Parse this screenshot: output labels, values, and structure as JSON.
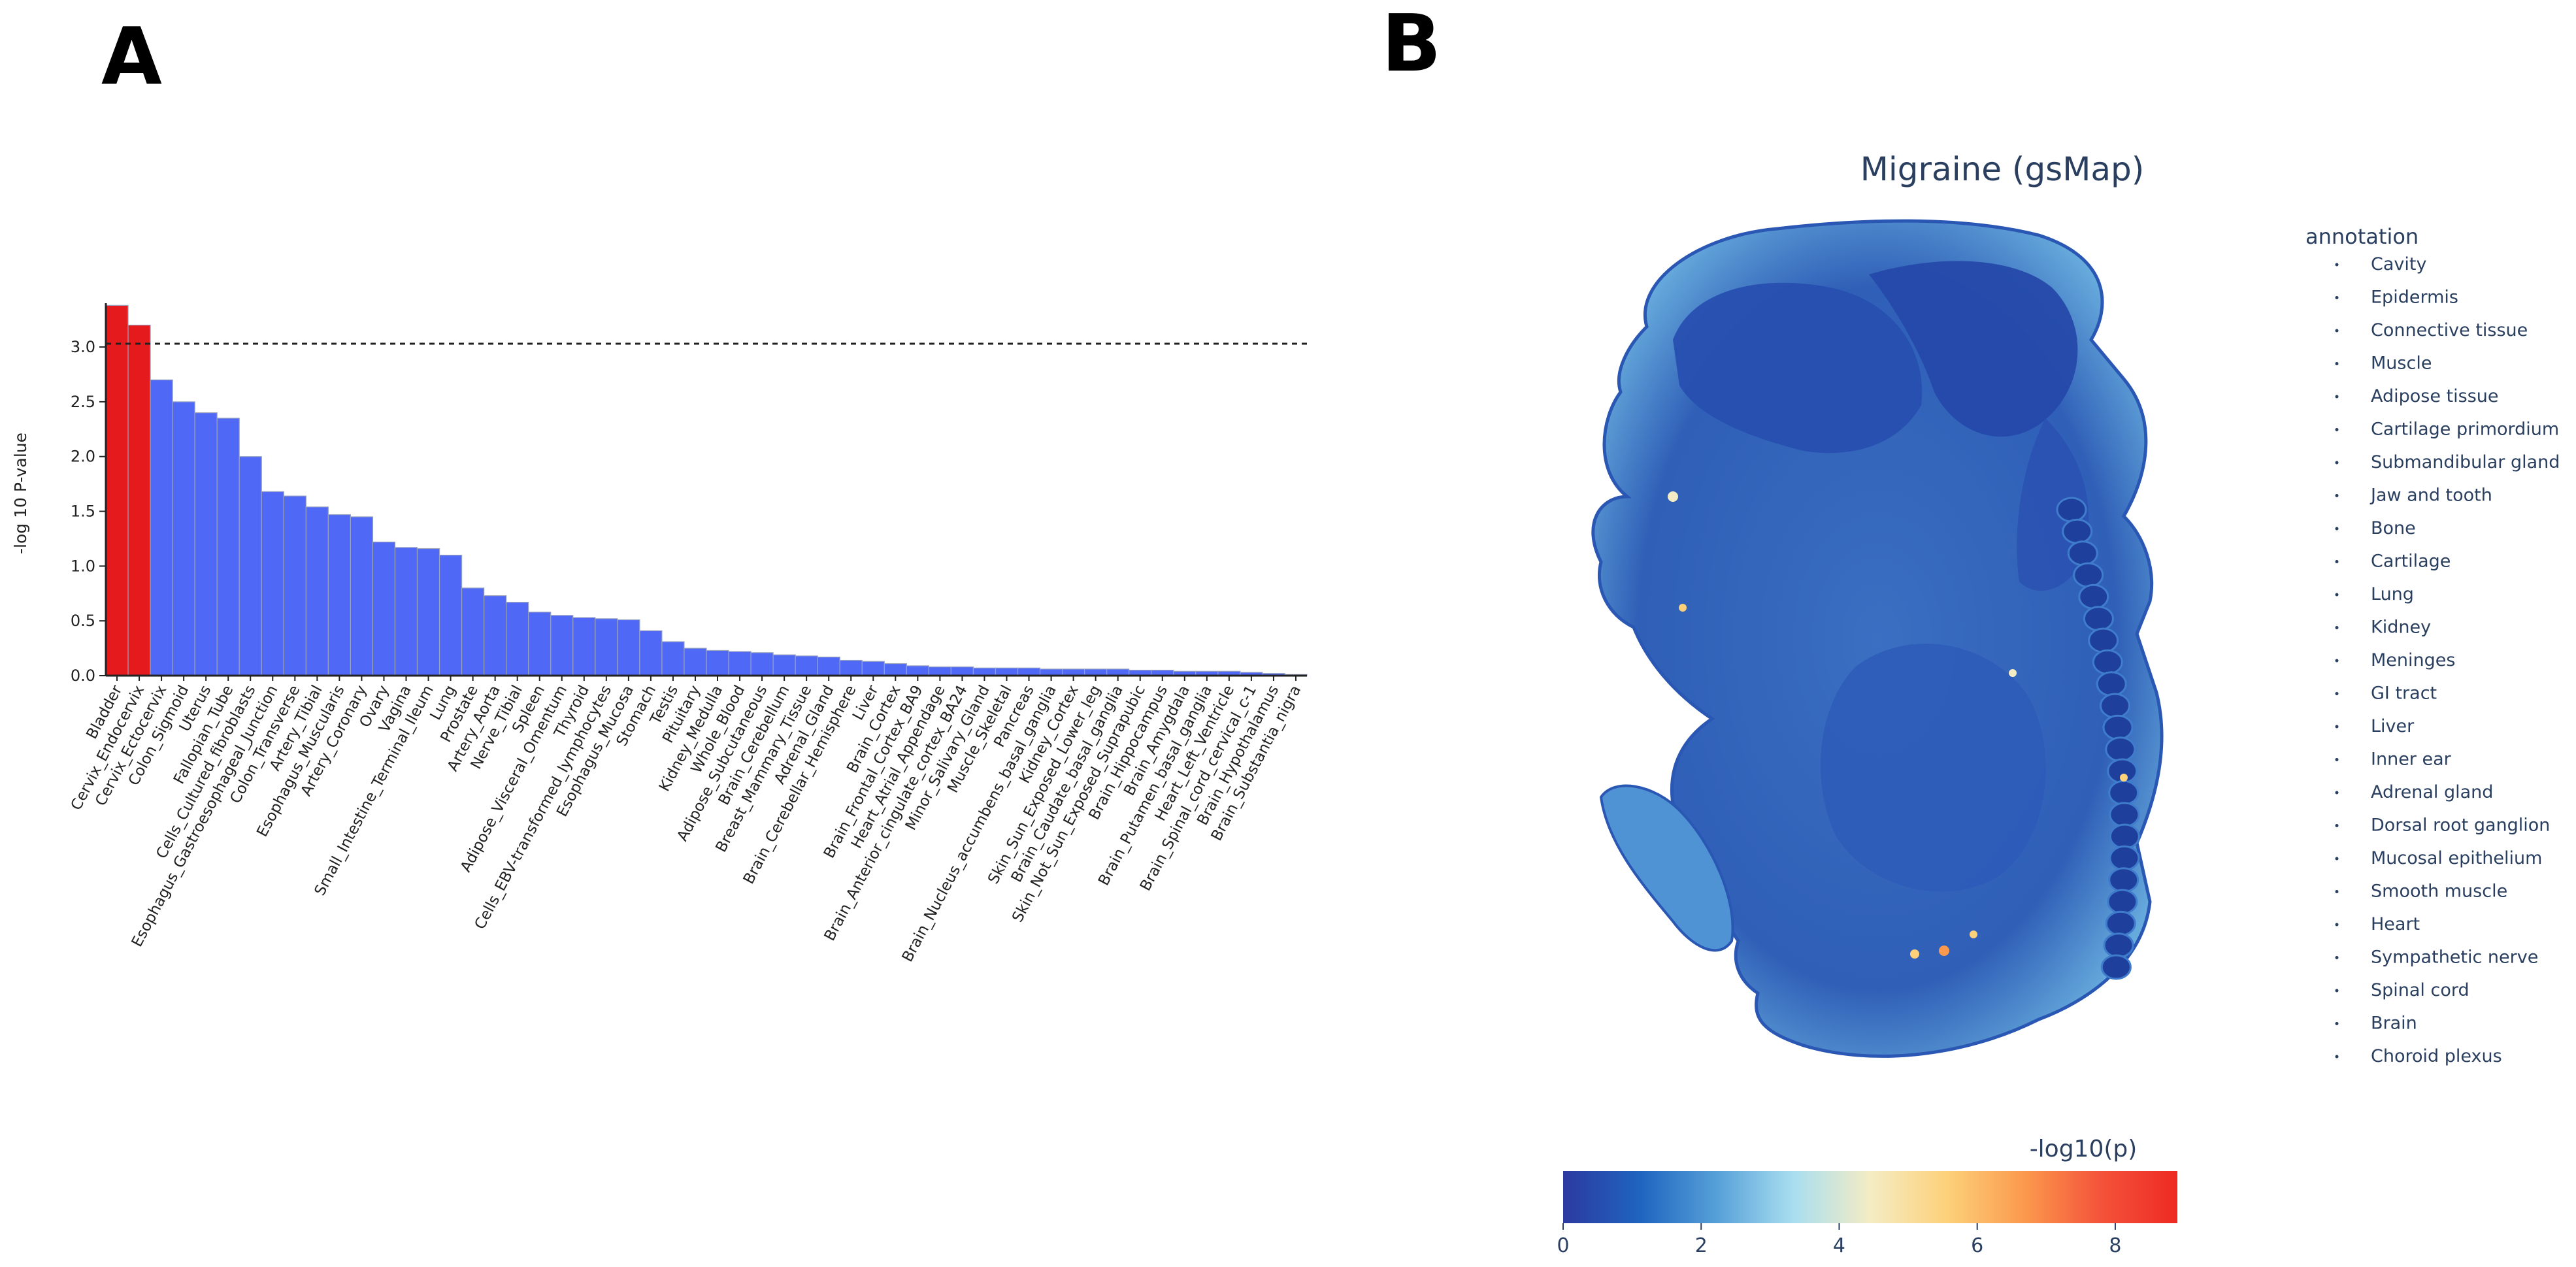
{
  "panel_a_label": "A",
  "panel_b_label": "B",
  "chart_data": [
    {
      "type": "bar",
      "title": "",
      "xlabel": "",
      "ylabel": "-log 10 P-value",
      "ylim": [
        0,
        3.4
      ],
      "yticks": [
        "0.0",
        "0.5",
        "1.0",
        "1.5",
        "2.0",
        "2.5",
        "3.0"
      ],
      "threshold": 3.03,
      "colors": {
        "significant": "#e41a1c",
        "other": "#4f68f5"
      },
      "significant_count": 2,
      "categories": [
        "Bladder",
        "Cervix_Endocervix",
        "Cervix_Ectocervix",
        "Colon_Sigmoid",
        "Uterus",
        "Fallopian_Tube",
        "Cells_Cultured_fibroblasts",
        "Esophagus_Gastroesophageal_Junction",
        "Colon_Transverse",
        "Artery_Tibial",
        "Esophagus_Muscularis",
        "Artery_Coronary",
        "Ovary",
        "Vagina",
        "Small_Intestine_Terminal_Ileum",
        "Lung",
        "Prostate",
        "Artery_Aorta",
        "Nerve_Tibial",
        "Spleen",
        "Adipose_Visceral_Omentum",
        "Thyroid",
        "Cells_EBV-transformed_lymphocytes",
        "Esophagus_Mucosa",
        "Stomach",
        "Testis",
        "Pituitary",
        "Kidney_Medulla",
        "Whole_Blood",
        "Adipose_Subcutaneous",
        "Brain_Cerebellum",
        "Breast_Mammary_Tissue",
        "Adrenal_Gland",
        "Brain_Cerebellar_Hemisphere",
        "Liver",
        "Brain_Cortex",
        "Brain_Frontal_Cortex_BA9",
        "Heart_Atrial_Appendage",
        "Brain_Anterior_cingulate_cortex_BA24",
        "Minor_Salivary_Gland",
        "Muscle_Skeletal",
        "Pancreas",
        "Brain_Nucleus_accumbens_basal_ganglia",
        "Kidney_Cortex",
        "Skin_Sun_Exposed_Lower_leg",
        "Brain_Caudate_basal_ganglia",
        "Skin_Not_Sun_Exposed_Suprapubic",
        "Brain_Hippocampus",
        "Brain_Amygdala",
        "Brain_Putamen_basal_ganglia",
        "Heart_Left_Ventricle",
        "Brain_Spinal_cord_cervical_c-1",
        "Brain_Hypothalamus",
        "Brain_Substantia_nigra"
      ],
      "values": [
        3.38,
        3.2,
        2.7,
        2.5,
        2.4,
        2.35,
        2.0,
        1.68,
        1.64,
        1.54,
        1.47,
        1.45,
        1.22,
        1.17,
        1.16,
        1.1,
        0.8,
        0.73,
        0.67,
        0.58,
        0.55,
        0.53,
        0.52,
        0.51,
        0.41,
        0.31,
        0.25,
        0.23,
        0.22,
        0.21,
        0.19,
        0.18,
        0.17,
        0.14,
        0.13,
        0.11,
        0.09,
        0.08,
        0.08,
        0.07,
        0.07,
        0.07,
        0.06,
        0.06,
        0.06,
        0.06,
        0.05,
        0.05,
        0.04,
        0.04,
        0.04,
        0.03,
        0.02,
        0.01
      ]
    },
    {
      "type": "heatmap",
      "title": "Migraine (gsMap)",
      "legend_title": "annotation",
      "legend_items": [
        "Cavity",
        "Epidermis",
        "Connective tissue",
        "Muscle",
        "Adipose tissue",
        "Cartilage primordium",
        "Submandibular gland",
        "Jaw and tooth",
        "Bone",
        "Cartilage",
        "Lung",
        "Kidney",
        "Meninges",
        "GI tract",
        "Liver",
        "Inner ear",
        "Adrenal gland",
        "Dorsal root ganglion",
        "Mucosal epithelium",
        "Smooth muscle",
        "Heart",
        "Sympathetic nerve",
        "Spinal cord",
        "Brain",
        "Choroid plexus"
      ],
      "colorbar": {
        "title": "-log10(p)",
        "range": [
          0,
          8.9
        ],
        "ticks": [
          0,
          2,
          4,
          6,
          8
        ],
        "tick_labels": [
          "0",
          "2",
          "4",
          "6",
          "8"
        ],
        "colors": [
          "#2c3aa0",
          "#1f64c0",
          "#56a0d8",
          "#a9def0",
          "#f4ecc4",
          "#fdd17a",
          "#fb9a4e",
          "#f4533a",
          "#ee2a24"
        ]
      }
    }
  ]
}
